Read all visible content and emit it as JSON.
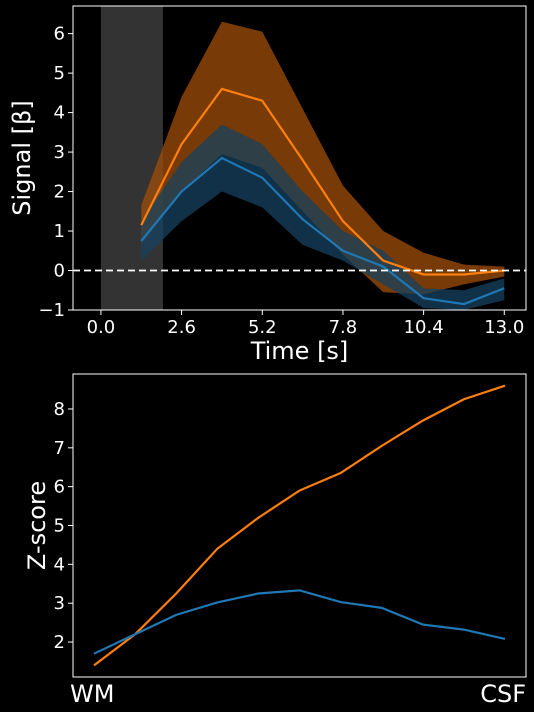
{
  "chart_data": [
    {
      "type": "line",
      "xlabel": "Time [s]",
      "ylabel": "Signal [β]",
      "xlim": [
        -0.9,
        13.7
      ],
      "ylim": [
        -1,
        6.7
      ],
      "x_ticks": [
        0.0,
        2.6,
        5.2,
        7.8,
        10.4,
        13.0
      ],
      "x_tick_labels": [
        "0.0",
        "2.6",
        "5.2",
        "7.8",
        "10.4",
        "13.0"
      ],
      "y_ticks": [
        -1,
        0,
        1,
        2,
        3,
        4,
        5,
        6
      ],
      "y_tick_labels": [
        "−1",
        "0",
        "1",
        "2",
        "3",
        "4",
        "5",
        "6"
      ],
      "stimulus_window": [
        0.0,
        2.0
      ],
      "baseline": 0,
      "baseline_style": "dashed",
      "grid": false,
      "x": [
        1.3,
        2.6,
        3.9,
        5.2,
        6.5,
        7.8,
        9.1,
        10.4,
        11.7,
        13.0
      ],
      "series": [
        {
          "color": "#ff7f0e",
          "band_color": "#a04d08",
          "values": [
            1.15,
            3.2,
            4.6,
            4.3,
            2.8,
            1.25,
            0.25,
            -0.1,
            -0.1,
            0.0
          ],
          "lower": [
            0.65,
            2.0,
            2.95,
            2.6,
            1.5,
            0.4,
            -0.55,
            -0.6,
            -0.35,
            -0.15
          ],
          "upper": [
            1.65,
            4.4,
            6.3,
            6.05,
            4.1,
            2.15,
            1.0,
            0.45,
            0.15,
            0.1
          ]
        },
        {
          "color": "#1f77b4",
          "band_color": "#16425f",
          "values": [
            0.75,
            2.0,
            2.85,
            2.35,
            1.3,
            0.5,
            0.1,
            -0.7,
            -0.85,
            -0.45
          ],
          "lower": [
            0.25,
            1.25,
            2.0,
            1.6,
            0.65,
            0.25,
            -0.35,
            -0.95,
            -1.0,
            -0.75
          ],
          "upper": [
            1.25,
            2.75,
            3.7,
            3.2,
            2.0,
            1.0,
            0.5,
            -0.45,
            -0.5,
            -0.2
          ]
        }
      ]
    },
    {
      "type": "line",
      "ylabel": "Z-score",
      "x_tick_labels": [
        "WM",
        "CSF"
      ],
      "ylim": [
        1.1,
        8.9
      ],
      "y_ticks": [
        2,
        3,
        4,
        5,
        6,
        7,
        8
      ],
      "y_tick_labels": [
        "2",
        "3",
        "4",
        "5",
        "6",
        "7",
        "8"
      ],
      "grid": false,
      "x": [
        0,
        1,
        2,
        3,
        4,
        5,
        6,
        7,
        8,
        9,
        10
      ],
      "series": [
        {
          "color": "#ff7f0e",
          "values": [
            1.4,
            2.2,
            3.25,
            4.4,
            5.2,
            5.9,
            6.35,
            7.05,
            7.7,
            8.25,
            8.6
          ]
        },
        {
          "color": "#1f77b4",
          "values": [
            1.7,
            2.2,
            2.7,
            3.02,
            3.25,
            3.33,
            3.03,
            2.88,
            2.45,
            2.32,
            2.08
          ]
        }
      ]
    }
  ]
}
